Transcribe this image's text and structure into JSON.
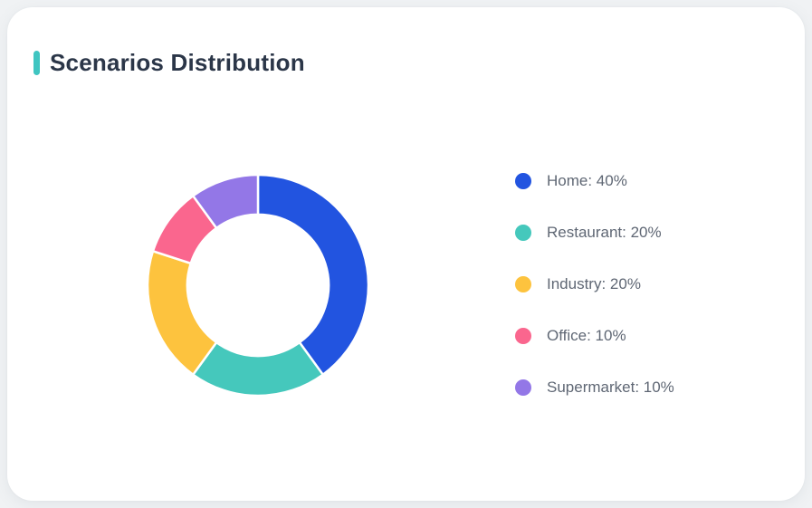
{
  "page": {
    "background": "#f0f2f4"
  },
  "card": {
    "background": "#ffffff",
    "title": "Scenarios Distribution",
    "title_color": "#2b3648",
    "accent_color": "#3fc5c1"
  },
  "chart_data": {
    "type": "pie",
    "subtype": "donut",
    "title": "Scenarios Distribution",
    "categories": [
      "Home",
      "Restaurant",
      "Industry",
      "Office",
      "Supermarket"
    ],
    "values": [
      40,
      20,
      20,
      10,
      10
    ],
    "unit": "%",
    "colors": [
      "#2254e0",
      "#45c8bc",
      "#fdc33e",
      "#fa668e",
      "#9377e7"
    ],
    "legend_labels": [
      "Home: 40%",
      "Restaurant: 20%",
      "Industry: 20%",
      "Office: 10%",
      "Supermarket: 10%"
    ],
    "legend_position": "right",
    "legend_text_color": "#5f6774",
    "start_angle_deg": 0,
    "direction": "clockwise",
    "inner_radius_ratio": 0.64,
    "slice_gap_color": "#ffffff"
  }
}
